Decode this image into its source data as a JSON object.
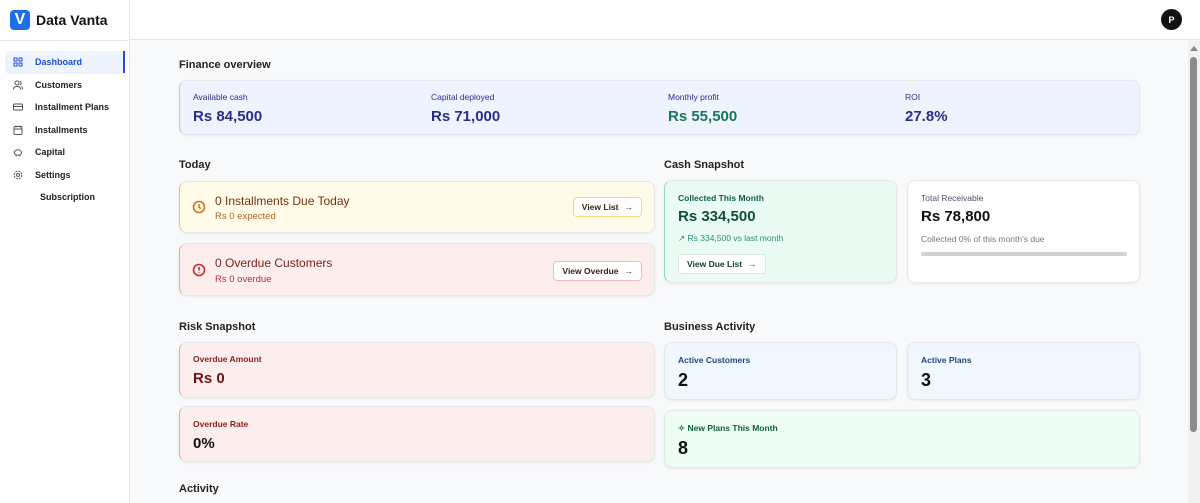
{
  "app": {
    "name": "Data Vanta",
    "logo_letter": "V"
  },
  "sidebar": {
    "items": [
      {
        "label": "Dashboard",
        "icon": "grid-icon"
      },
      {
        "label": "Customers",
        "icon": "users-icon"
      },
      {
        "label": "Installment Plans",
        "icon": "card-icon"
      },
      {
        "label": "Installments",
        "icon": "calendar-icon"
      },
      {
        "label": "Capital",
        "icon": "piggy-bank-icon"
      },
      {
        "label": "Settings",
        "icon": "gear-icon"
      },
      {
        "label": "Subscription"
      }
    ]
  },
  "header": {
    "avatar": "P"
  },
  "finance": {
    "title": "Finance overview",
    "items": [
      {
        "label": "Available cash",
        "value": "Rs 84,500"
      },
      {
        "label": "Capital deployed",
        "value": "Rs 71,000"
      },
      {
        "label": "Monthly profit",
        "value": "Rs 55,500"
      },
      {
        "label": "ROI",
        "value": "27.8%"
      }
    ]
  },
  "today": {
    "title": "Today",
    "due": {
      "title": "0 Installments Due Today",
      "sub": "Rs 0 expected",
      "button": "View List"
    },
    "overdue": {
      "title": "0 Overdue Customers",
      "sub": "Rs 0 overdue",
      "button": "View Overdue"
    }
  },
  "cash": {
    "title": "Cash Snapshot",
    "collected": {
      "label": "Collected This Month",
      "value": "Rs 334,500",
      "trend": "Rs 334,500 vs last month",
      "button": "View Due List"
    },
    "receivable": {
      "label": "Total Receivable",
      "value": "Rs 78,800",
      "sub": "Collected 0% of this month's due",
      "progress_percent": 0
    }
  },
  "risk": {
    "title": "Risk Snapshot",
    "amount": {
      "label": "Overdue Amount",
      "value": "Rs 0"
    },
    "rate": {
      "label": "Overdue Rate",
      "value": "0%"
    }
  },
  "business": {
    "title": "Business Activity",
    "customers": {
      "label": "Active Customers",
      "value": "2"
    },
    "plans": {
      "label": "Active Plans",
      "value": "3"
    },
    "new_plans": {
      "label": "New Plans This Month",
      "value": "8"
    }
  },
  "activity": {
    "title": "Activity"
  }
}
